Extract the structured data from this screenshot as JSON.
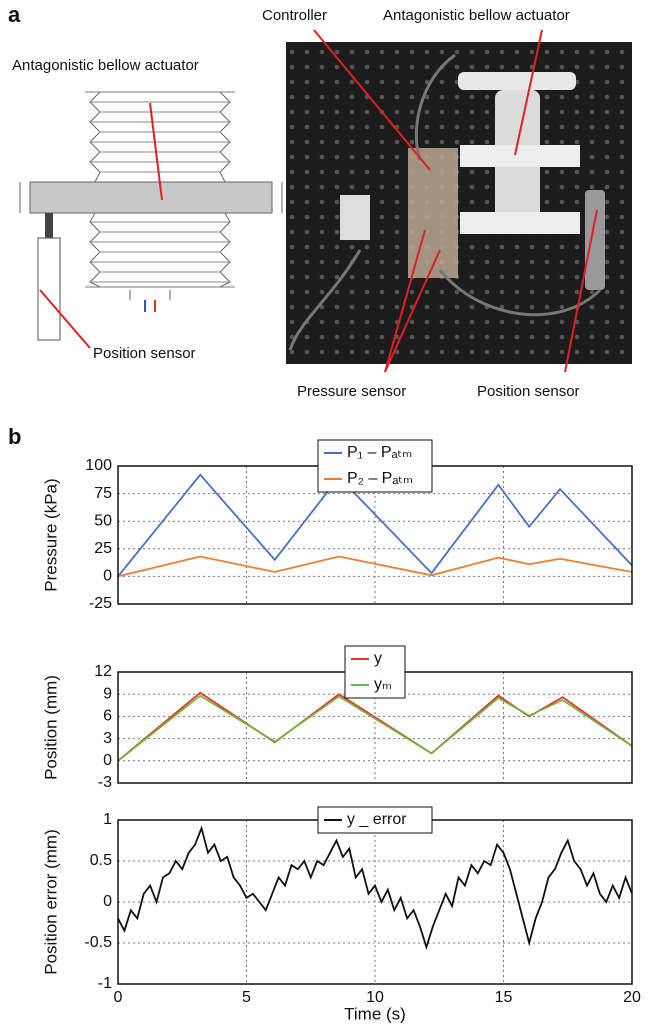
{
  "panel_a": {
    "label": "a",
    "diagram_labels": [
      "Antagonistic bellow actuator",
      "Position sensor"
    ],
    "photo_labels": [
      "Controller",
      "Antagonistic bellow actuator",
      "Pressure sensor",
      "Position sensor"
    ]
  },
  "panel_b": {
    "label": "b"
  },
  "chart_data": [
    {
      "type": "line",
      "ylabel": "Pressure (kPa)",
      "x": [
        0,
        3.2,
        6.1,
        8.6,
        12.2,
        14.8,
        16.0,
        17.2,
        20
      ],
      "series": [
        {
          "name": "P₁ – Pₐₜₘ",
          "color": "#4472c4",
          "values": [
            0,
            92,
            15,
            90,
            3,
            83,
            45,
            79,
            10
          ]
        },
        {
          "name": "P₂ – Pₐₜₘ",
          "color": "#ed7d31",
          "values": [
            0,
            18,
            4,
            18,
            1,
            17,
            11,
            16,
            4
          ]
        }
      ],
      "xlim": [
        0,
        20
      ],
      "xticks": [
        0,
        5,
        10,
        15,
        20
      ],
      "ylim": [
        -25,
        100
      ],
      "yticks": [
        -25,
        0,
        25,
        50,
        75,
        100
      ],
      "grid": true,
      "legend": "top"
    },
    {
      "type": "line",
      "ylabel": "Position (mm)",
      "x": [
        0,
        3.2,
        6.1,
        8.6,
        12.2,
        14.8,
        16.0,
        17.3,
        20
      ],
      "series": [
        {
          "name": "y",
          "color": "#e8322b",
          "values": [
            0,
            9.2,
            2.5,
            9.0,
            1.0,
            8.8,
            6.0,
            8.6,
            2.0
          ]
        },
        {
          "name": "yₘ",
          "color": "#70b83c",
          "values": [
            0,
            8.8,
            2.6,
            8.7,
            1.0,
            8.5,
            6.1,
            8.2,
            2.0
          ]
        }
      ],
      "xlim": [
        0,
        20
      ],
      "xticks": [
        0,
        5,
        10,
        15,
        20
      ],
      "ylim": [
        -3,
        12
      ],
      "yticks": [
        -3,
        0,
        3,
        6,
        9,
        12
      ],
      "grid": true,
      "legend": "top"
    },
    {
      "type": "line",
      "ylabel": "Position error (mm)",
      "xlabel": "Time (s)",
      "x": [
        0,
        0.25,
        0.5,
        0.75,
        1,
        1.25,
        1.5,
        1.75,
        2,
        2.25,
        2.5,
        2.75,
        3,
        3.25,
        3.5,
        3.75,
        4,
        4.25,
        4.5,
        4.75,
        5,
        5.25,
        5.5,
        5.75,
        6,
        6.25,
        6.5,
        6.75,
        7,
        7.25,
        7.5,
        7.75,
        8,
        8.25,
        8.5,
        8.75,
        9,
        9.25,
        9.5,
        9.75,
        10,
        10.25,
        10.5,
        10.75,
        11,
        11.25,
        11.5,
        11.75,
        12,
        12.25,
        12.5,
        12.75,
        13,
        13.25,
        13.5,
        13.75,
        14,
        14.25,
        14.5,
        14.75,
        15,
        15.25,
        15.5,
        15.75,
        16,
        16.25,
        16.5,
        16.75,
        17,
        17.25,
        17.5,
        17.75,
        18,
        18.25,
        18.5,
        18.75,
        19,
        19.25,
        19.5,
        19.75,
        20
      ],
      "series": [
        {
          "name": "y _ error",
          "color": "#111111",
          "values": [
            -0.2,
            -0.35,
            -0.1,
            -0.2,
            0.1,
            0.2,
            0.0,
            0.3,
            0.35,
            0.5,
            0.4,
            0.6,
            0.7,
            0.9,
            0.6,
            0.7,
            0.5,
            0.55,
            0.3,
            0.2,
            0.05,
            0.1,
            0.0,
            -0.1,
            0.1,
            0.3,
            0.2,
            0.45,
            0.4,
            0.5,
            0.3,
            0.5,
            0.45,
            0.6,
            0.75,
            0.55,
            0.65,
            0.3,
            0.4,
            0.1,
            0.2,
            0.0,
            0.15,
            -0.1,
            0.05,
            -0.2,
            -0.1,
            -0.3,
            -0.55,
            -0.3,
            -0.1,
            0.1,
            -0.05,
            0.3,
            0.2,
            0.45,
            0.35,
            0.5,
            0.45,
            0.7,
            0.6,
            0.4,
            0.1,
            -0.2,
            -0.5,
            -0.2,
            0.0,
            0.3,
            0.4,
            0.6,
            0.75,
            0.5,
            0.4,
            0.2,
            0.35,
            0.1,
            0.0,
            0.2,
            0.05,
            0.3,
            0.1
          ]
        }
      ],
      "xlim": [
        0,
        20
      ],
      "xticks": [
        0,
        5,
        10,
        15,
        20
      ],
      "ylim": [
        -1,
        1
      ],
      "yticks": [
        -1,
        -0.5,
        0,
        0.5,
        1
      ],
      "grid": true,
      "legend": "top"
    }
  ]
}
